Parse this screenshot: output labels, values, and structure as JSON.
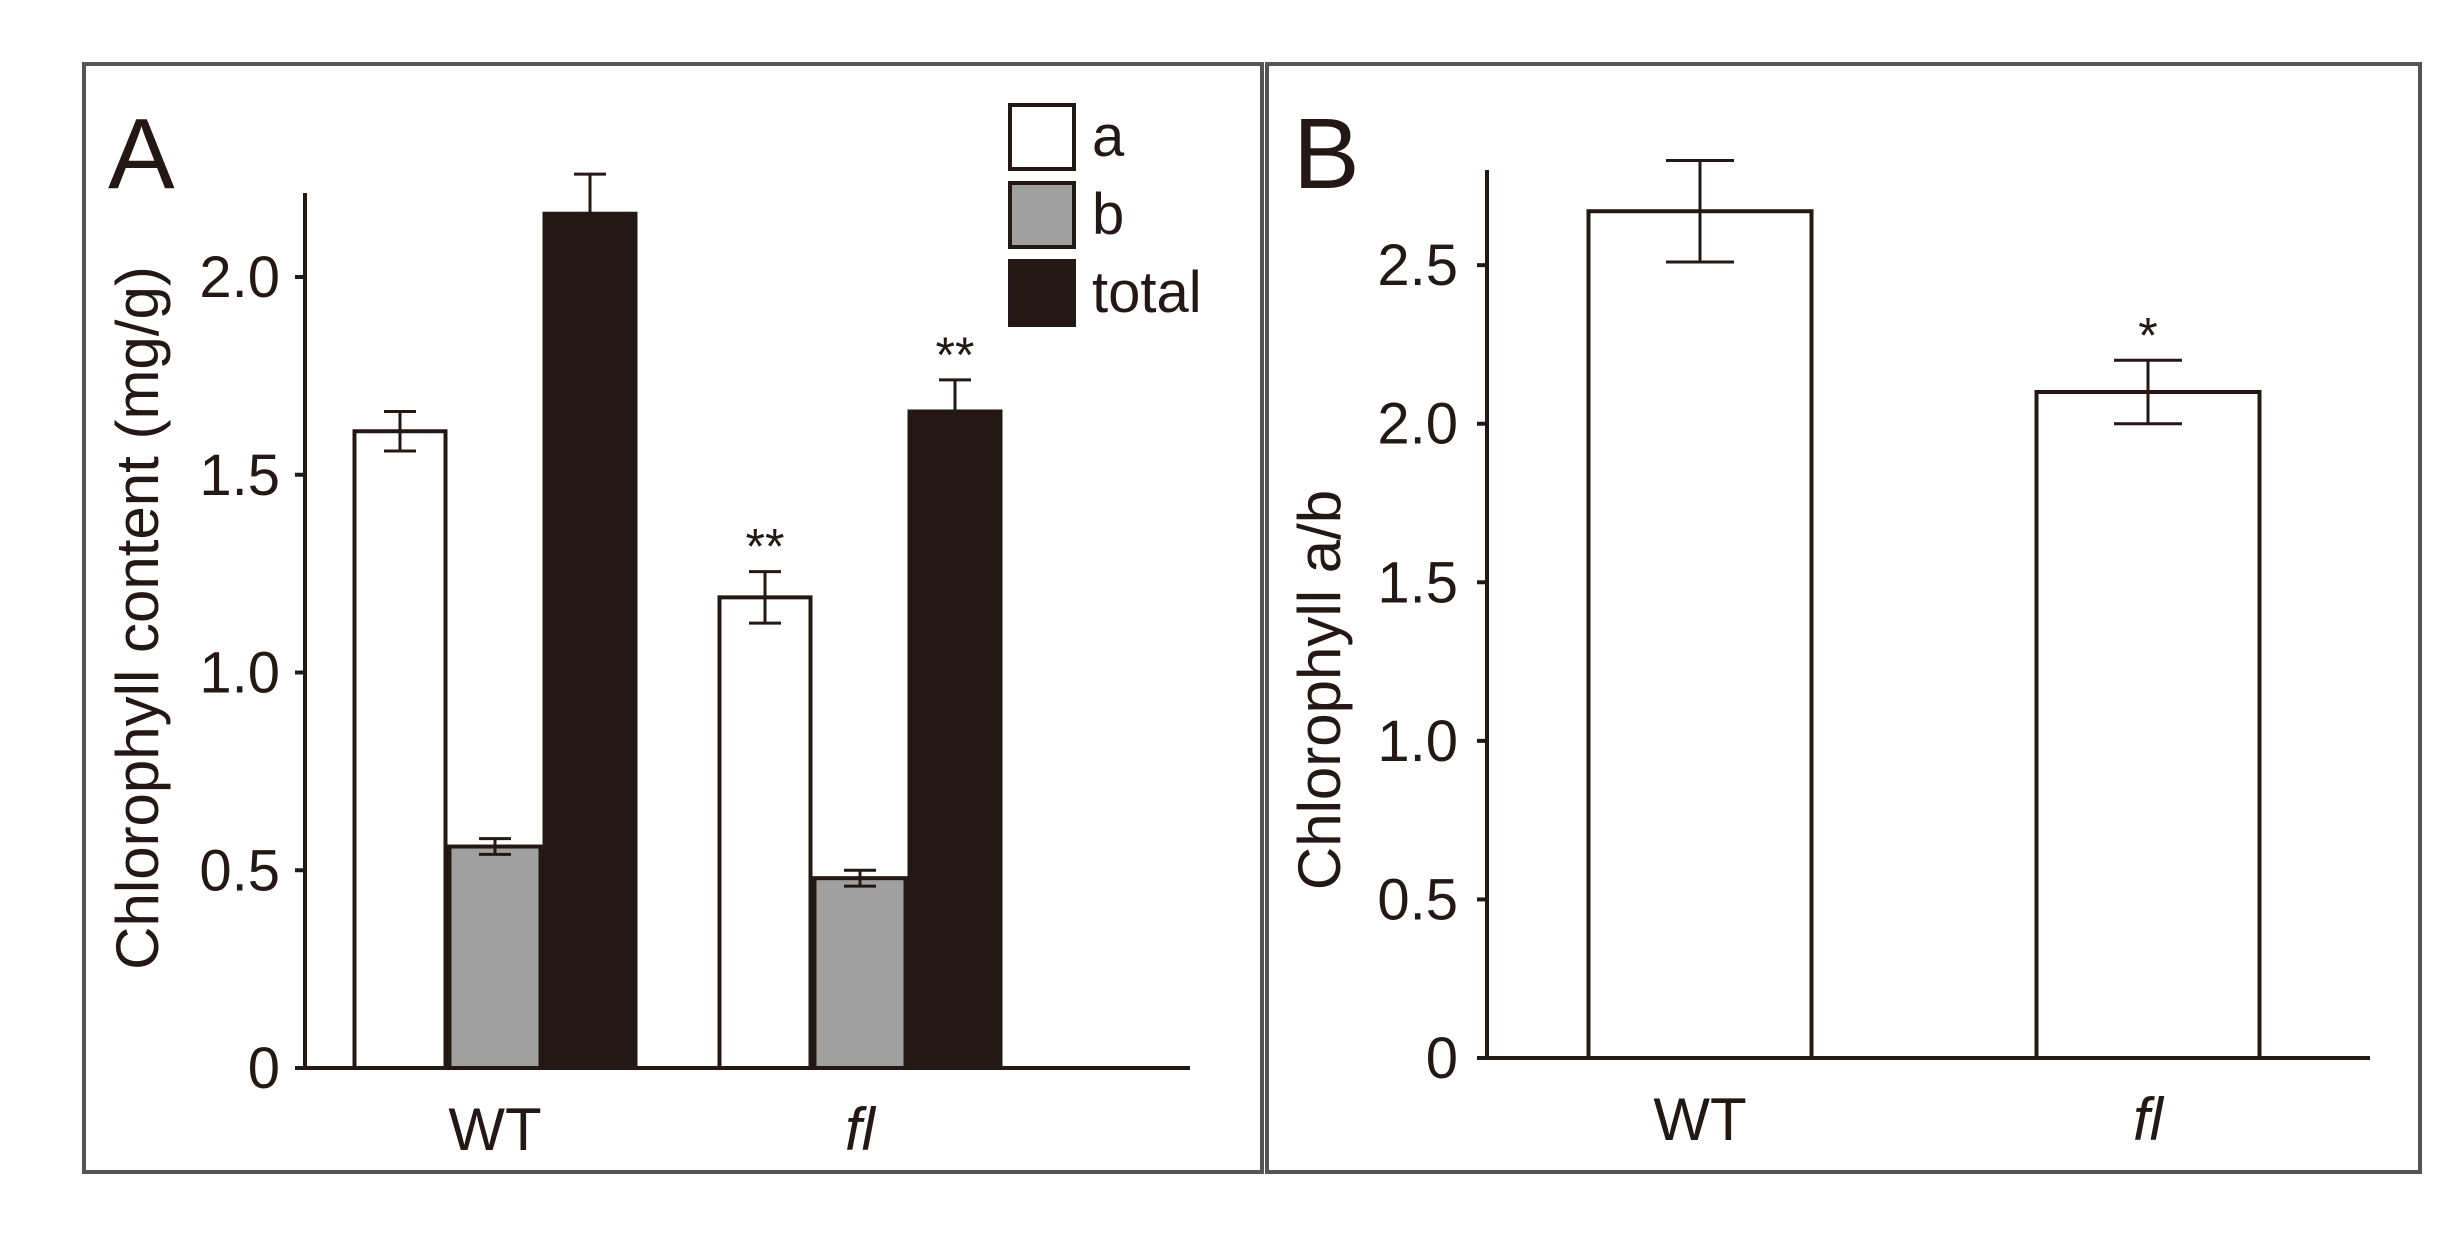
{
  "colors": {
    "ink": "#231815",
    "frame": "#555555",
    "a": "#ffffff",
    "b": "#a0a0a0",
    "total": "#231815"
  },
  "chart_data": [
    {
      "panel_label": "A",
      "type": "bar",
      "categories": [
        "WT",
        "fl"
      ],
      "italic_categories": [
        "fl"
      ],
      "series": [
        {
          "name": "a",
          "key": "a",
          "values": [
            1.61,
            1.19
          ],
          "errors": [
            0.05,
            0.065
          ],
          "significance": [
            "",
            "**"
          ]
        },
        {
          "name": "b",
          "key": "b",
          "values": [
            0.56,
            0.48
          ],
          "errors": [
            0.02,
            0.02
          ],
          "significance": [
            "",
            ""
          ]
        },
        {
          "name": "total",
          "key": "total",
          "values": [
            2.16,
            1.66
          ],
          "errors": [
            0.1,
            0.08
          ],
          "significance": [
            "",
            "**"
          ]
        }
      ],
      "ylabel": "Chlorophyll content (mg/g)",
      "ylim": [
        0,
        2.22
      ],
      "yticks": [
        0,
        0.5,
        1.0,
        1.5,
        2.0
      ],
      "ytick_labels": [
        "0",
        "0.5",
        "1.0",
        "1.5",
        "2.0"
      ],
      "legend_position": "top-right",
      "grid": false
    },
    {
      "panel_label": "B",
      "type": "bar",
      "categories": [
        "WT",
        "fl"
      ],
      "italic_categories": [
        "fl"
      ],
      "series": [
        {
          "name": "a/b",
          "key": "a",
          "values": [
            2.67,
            2.1
          ],
          "errors": [
            0.16,
            0.1
          ],
          "significance": [
            "",
            "*"
          ]
        }
      ],
      "ylabel": "Chlorophyll a/b",
      "ylim": [
        0,
        2.8
      ],
      "yticks": [
        0,
        0.5,
        1.0,
        1.5,
        2.0,
        2.5
      ],
      "ytick_labels": [
        "0",
        "0.5",
        "1.0",
        "1.5",
        "2.0",
        "2.5"
      ],
      "grid": false
    }
  ]
}
